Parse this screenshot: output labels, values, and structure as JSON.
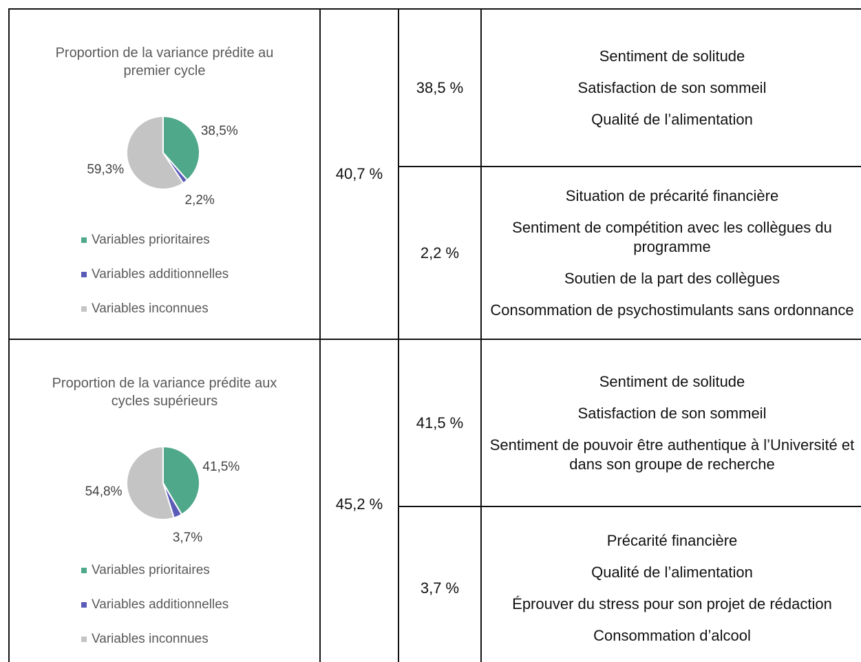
{
  "table": {
    "rows": [
      {
        "chart": {
          "type": "pie",
          "title": "Proportion de la variance prédite au premier cycle",
          "categories": [
            "Variables prioritaires",
            "Variables additionnelles",
            "Variables inconnues"
          ],
          "values": [
            38.5,
            2.2,
            59.3
          ],
          "value_labels": [
            "38,5%",
            "2,2%",
            "59,3%"
          ],
          "colors": [
            "#4fa88a",
            "#5b5bb8",
            "#c4c4c4"
          ]
        },
        "total": "40,7 %",
        "groups": [
          {
            "share": "38,5 %",
            "variables": [
              "Sentiment de solitude",
              "Satisfaction de son sommeil",
              "Qualité de l’alimentation"
            ]
          },
          {
            "share": "2,2 %",
            "variables": [
              "Situation de précarité financière",
              "Sentiment de compétition avec les collègues du programme",
              "Soutien de la part des collègues",
              "Consommation de psychostimulants sans ordonnance"
            ]
          }
        ]
      },
      {
        "chart": {
          "type": "pie",
          "title": "Proportion de la variance prédite aux cycles supérieurs",
          "categories": [
            "Variables prioritaires",
            "Variables additionnelles",
            "Variables inconnues"
          ],
          "values": [
            41.5,
            3.7,
            54.8
          ],
          "value_labels": [
            "41,5%",
            "3,7%",
            "54,8%"
          ],
          "colors": [
            "#4fa88a",
            "#5b5bb8",
            "#c4c4c4"
          ]
        },
        "total": "45,2 %",
        "groups": [
          {
            "share": "41,5 %",
            "variables": [
              "Sentiment de solitude",
              "Satisfaction de son sommeil",
              "Sentiment de pouvoir être authentique à l’Université et dans son groupe de recherche"
            ]
          },
          {
            "share": "3,7 %",
            "variables": [
              "Précarité financière",
              "Qualité de l’alimentation",
              "Éprouver du stress pour son projet de rédaction",
              "Consommation d’alcool"
            ]
          }
        ]
      }
    ]
  }
}
